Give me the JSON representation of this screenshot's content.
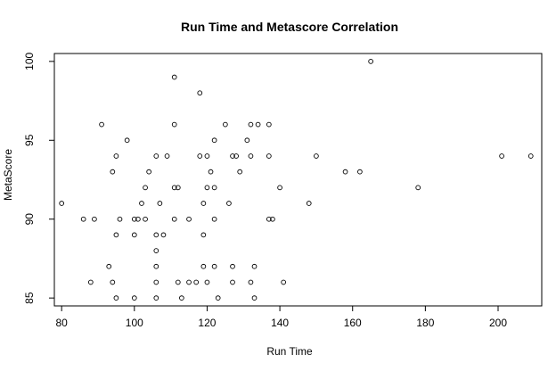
{
  "chart_data": {
    "type": "scatter",
    "title": "Run Time and Metascore Correlation",
    "xlabel": "Run Time",
    "ylabel": "MetaScore",
    "xlim": [
      78,
      212
    ],
    "ylim": [
      84.5,
      100.5
    ],
    "x_ticks": [
      80,
      100,
      120,
      140,
      160,
      180,
      200
    ],
    "y_ticks": [
      85,
      90,
      95,
      100
    ],
    "grid": false,
    "legend": "none",
    "marker": "open-circle",
    "points": [
      {
        "x": 80,
        "y": 91
      },
      {
        "x": 86,
        "y": 90
      },
      {
        "x": 88,
        "y": 86
      },
      {
        "x": 89,
        "y": 90
      },
      {
        "x": 91,
        "y": 96
      },
      {
        "x": 93,
        "y": 87
      },
      {
        "x": 94,
        "y": 86
      },
      {
        "x": 94,
        "y": 93
      },
      {
        "x": 95,
        "y": 94
      },
      {
        "x": 95,
        "y": 89
      },
      {
        "x": 95,
        "y": 85
      },
      {
        "x": 96,
        "y": 90
      },
      {
        "x": 98,
        "y": 95
      },
      {
        "x": 100,
        "y": 90
      },
      {
        "x": 100,
        "y": 89
      },
      {
        "x": 100,
        "y": 85
      },
      {
        "x": 101,
        "y": 90
      },
      {
        "x": 102,
        "y": 91
      },
      {
        "x": 103,
        "y": 92
      },
      {
        "x": 103,
        "y": 90
      },
      {
        "x": 104,
        "y": 93
      },
      {
        "x": 106,
        "y": 94
      },
      {
        "x": 106,
        "y": 89
      },
      {
        "x": 106,
        "y": 88
      },
      {
        "x": 106,
        "y": 87
      },
      {
        "x": 106,
        "y": 86
      },
      {
        "x": 106,
        "y": 85
      },
      {
        "x": 107,
        "y": 91
      },
      {
        "x": 108,
        "y": 89
      },
      {
        "x": 109,
        "y": 94
      },
      {
        "x": 111,
        "y": 99
      },
      {
        "x": 111,
        "y": 96
      },
      {
        "x": 111,
        "y": 92
      },
      {
        "x": 111,
        "y": 90
      },
      {
        "x": 112,
        "y": 92
      },
      {
        "x": 112,
        "y": 86
      },
      {
        "x": 113,
        "y": 85
      },
      {
        "x": 115,
        "y": 90
      },
      {
        "x": 115,
        "y": 86
      },
      {
        "x": 117,
        "y": 86
      },
      {
        "x": 118,
        "y": 98
      },
      {
        "x": 118,
        "y": 94
      },
      {
        "x": 119,
        "y": 91
      },
      {
        "x": 119,
        "y": 89
      },
      {
        "x": 119,
        "y": 87
      },
      {
        "x": 120,
        "y": 94
      },
      {
        "x": 120,
        "y": 92
      },
      {
        "x": 120,
        "y": 86
      },
      {
        "x": 121,
        "y": 93
      },
      {
        "x": 122,
        "y": 95
      },
      {
        "x": 122,
        "y": 92
      },
      {
        "x": 122,
        "y": 90
      },
      {
        "x": 122,
        "y": 87
      },
      {
        "x": 123,
        "y": 85
      },
      {
        "x": 125,
        "y": 96
      },
      {
        "x": 126,
        "y": 91
      },
      {
        "x": 127,
        "y": 94
      },
      {
        "x": 127,
        "y": 87
      },
      {
        "x": 127,
        "y": 86
      },
      {
        "x": 128,
        "y": 94
      },
      {
        "x": 129,
        "y": 93
      },
      {
        "x": 131,
        "y": 95
      },
      {
        "x": 132,
        "y": 96
      },
      {
        "x": 132,
        "y": 94
      },
      {
        "x": 132,
        "y": 86
      },
      {
        "x": 133,
        "y": 87
      },
      {
        "x": 133,
        "y": 85
      },
      {
        "x": 134,
        "y": 96
      },
      {
        "x": 137,
        "y": 96
      },
      {
        "x": 137,
        "y": 94
      },
      {
        "x": 137,
        "y": 90
      },
      {
        "x": 138,
        "y": 90
      },
      {
        "x": 140,
        "y": 92
      },
      {
        "x": 141,
        "y": 86
      },
      {
        "x": 148,
        "y": 91
      },
      {
        "x": 150,
        "y": 94
      },
      {
        "x": 158,
        "y": 93
      },
      {
        "x": 162,
        "y": 93
      },
      {
        "x": 165,
        "y": 100
      },
      {
        "x": 178,
        "y": 92
      },
      {
        "x": 201,
        "y": 94
      },
      {
        "x": 209,
        "y": 94
      }
    ]
  }
}
